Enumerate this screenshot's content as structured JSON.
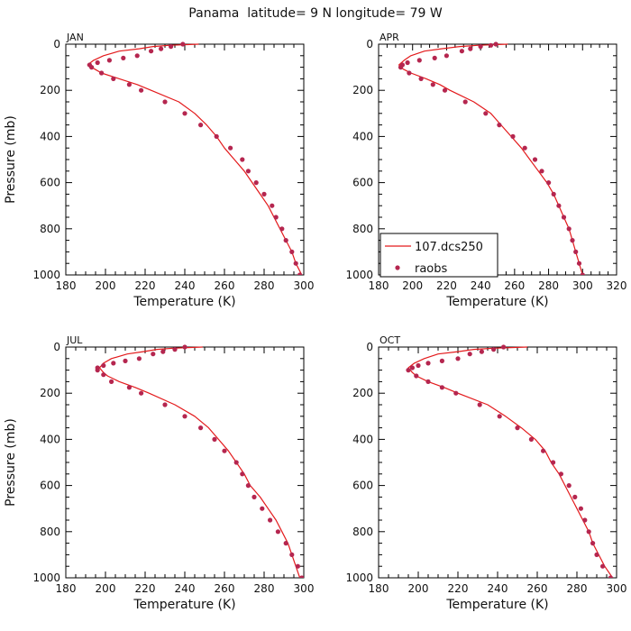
{
  "figure": {
    "title": "Panama  latitude= 9 N longitude= 79 W"
  },
  "colors": {
    "model_line": "#e31a1c",
    "obs_dots": "#b5264f",
    "axes": "#000000"
  },
  "legend": {
    "entries": [
      {
        "label": "107.dcs250",
        "marker": "line"
      },
      {
        "label": "raobs",
        "marker": "dot"
      }
    ]
  },
  "chart_data": [
    {
      "type": "line",
      "panel_label": "JAN",
      "xlabel": "Temperature (K)",
      "ylabel": "Pressure (mb)",
      "xlim": [
        180,
        300
      ],
      "ylim": [
        1000,
        0
      ],
      "xticks": [
        180,
        200,
        220,
        240,
        260,
        280,
        300
      ],
      "yticks": [
        0,
        200,
        400,
        600,
        800,
        1000
      ],
      "series": [
        {
          "name": "107.dcs250",
          "style": "line",
          "points": [
            [
              247,
              0
            ],
            [
              232,
              5
            ],
            [
              224,
              10
            ],
            [
              217,
              20
            ],
            [
              207,
              30
            ],
            [
              199,
              50
            ],
            [
              194,
              70
            ],
            [
              191,
              90
            ],
            [
              193,
              100
            ],
            [
              195,
              110
            ],
            [
              198,
              125
            ],
            [
              207,
              150
            ],
            [
              216,
              175
            ],
            [
              223,
              200
            ],
            [
              237,
              250
            ],
            [
              245,
              300
            ],
            [
              251,
              350
            ],
            [
              256,
              400
            ],
            [
              260,
              450
            ],
            [
              265,
              500
            ],
            [
              270,
              550
            ],
            [
              274,
              600
            ],
            [
              278,
              650
            ],
            [
              282,
              700
            ],
            [
              285,
              750
            ],
            [
              288,
              800
            ],
            [
              291,
              850
            ],
            [
              294,
              900
            ],
            [
              296,
              950
            ],
            [
              299,
              1000
            ]
          ]
        },
        {
          "name": "raobs",
          "style": "dots",
          "points": [
            [
              239,
              0
            ],
            [
              233,
              10
            ],
            [
              228,
              20
            ],
            [
              223,
              30
            ],
            [
              216,
              50
            ],
            [
              209,
              60
            ],
            [
              202,
              70
            ],
            [
              196,
              80
            ],
            [
              192,
              90
            ],
            [
              193,
              100
            ],
            [
              198,
              125
            ],
            [
              204,
              150
            ],
            [
              212,
              175
            ],
            [
              218,
              200
            ],
            [
              230,
              250
            ],
            [
              240,
              300
            ],
            [
              248,
              350
            ],
            [
              256,
              400
            ],
            [
              263,
              450
            ],
            [
              269,
              500
            ],
            [
              272,
              550
            ],
            [
              276,
              600
            ],
            [
              280,
              650
            ],
            [
              284,
              700
            ],
            [
              286,
              750
            ],
            [
              289,
              800
            ],
            [
              291,
              850
            ],
            [
              294,
              900
            ],
            [
              296,
              950
            ],
            [
              298,
              1000
            ]
          ]
        }
      ]
    },
    {
      "type": "line",
      "panel_label": "APR",
      "xlabel": "Temperature (K)",
      "ylabel": "",
      "xlim": [
        180,
        320
      ],
      "ylim": [
        1000,
        0
      ],
      "xticks": [
        180,
        200,
        220,
        240,
        260,
        280,
        300,
        320
      ],
      "yticks": [
        0,
        200,
        400,
        600,
        800,
        1000
      ],
      "series": [
        {
          "name": "107.dcs250",
          "style": "line",
          "points": [
            [
              256,
              0
            ],
            [
              238,
              5
            ],
            [
              228,
              10
            ],
            [
              217,
              20
            ],
            [
              207,
              30
            ],
            [
              199,
              50
            ],
            [
              195,
              70
            ],
            [
              192,
              90
            ],
            [
              193,
              100
            ],
            [
              195,
              110
            ],
            [
              199,
              125
            ],
            [
              208,
              150
            ],
            [
              216,
              175
            ],
            [
              222,
              200
            ],
            [
              236,
              250
            ],
            [
              246,
              300
            ],
            [
              252,
              350
            ],
            [
              258,
              400
            ],
            [
              264,
              450
            ],
            [
              269,
              500
            ],
            [
              274,
              550
            ],
            [
              279,
              600
            ],
            [
              283,
              650
            ],
            [
              286,
              700
            ],
            [
              289,
              750
            ],
            [
              292,
              800
            ],
            [
              294,
              850
            ],
            [
              296,
              900
            ],
            [
              298,
              950
            ],
            [
              300,
              1000
            ]
          ]
        },
        {
          "name": "raobs",
          "style": "dots",
          "points": [
            [
              249,
              0
            ],
            [
              246,
              5
            ],
            [
              240,
              10
            ],
            [
              234,
              20
            ],
            [
              229,
              30
            ],
            [
              220,
              50
            ],
            [
              213,
              60
            ],
            [
              204,
              70
            ],
            [
              197,
              80
            ],
            [
              194,
              90
            ],
            [
              193,
              100
            ],
            [
              198,
              125
            ],
            [
              205,
              150
            ],
            [
              212,
              175
            ],
            [
              219,
              200
            ],
            [
              231,
              250
            ],
            [
              243,
              300
            ],
            [
              251,
              350
            ],
            [
              259,
              400
            ],
            [
              266,
              450
            ],
            [
              272,
              500
            ],
            [
              276,
              550
            ],
            [
              280,
              600
            ],
            [
              283,
              650
            ],
            [
              286,
              700
            ],
            [
              289,
              750
            ],
            [
              292,
              800
            ],
            [
              294,
              850
            ],
            [
              296,
              900
            ],
            [
              298,
              950
            ],
            [
              300,
              1000
            ]
          ]
        }
      ]
    },
    {
      "type": "line",
      "panel_label": "JUL",
      "xlabel": "Temperature (K)",
      "ylabel": "Pressure (mb)",
      "xlim": [
        180,
        300
      ],
      "ylim": [
        1000,
        0
      ],
      "xticks": [
        180,
        200,
        220,
        240,
        260,
        280,
        300
      ],
      "yticks": [
        0,
        200,
        400,
        600,
        800,
        1000
      ],
      "series": [
        {
          "name": "107.dcs250",
          "style": "line",
          "points": [
            [
              249,
              0
            ],
            [
              234,
              5
            ],
            [
              226,
              10
            ],
            [
              219,
              20
            ],
            [
              211,
              30
            ],
            [
              203,
              50
            ],
            [
              199,
              70
            ],
            [
              197,
              90
            ],
            [
              198,
              100
            ],
            [
              199,
              110
            ],
            [
              201,
              125
            ],
            [
              207,
              150
            ],
            [
              215,
              175
            ],
            [
              222,
              200
            ],
            [
              235,
              250
            ],
            [
              245,
              300
            ],
            [
              252,
              350
            ],
            [
              257,
              400
            ],
            [
              262,
              450
            ],
            [
              266,
              500
            ],
            [
              270,
              550
            ],
            [
              273,
              600
            ],
            [
              278,
              650
            ],
            [
              282,
              700
            ],
            [
              286,
              750
            ],
            [
              289,
              800
            ],
            [
              292,
              850
            ],
            [
              294,
              900
            ],
            [
              296,
              950
            ],
            [
              298,
              1000
            ]
          ]
        },
        {
          "name": "raobs",
          "style": "dots",
          "points": [
            [
              240,
              0
            ],
            [
              235,
              10
            ],
            [
              229,
              20
            ],
            [
              224,
              30
            ],
            [
              217,
              50
            ],
            [
              210,
              60
            ],
            [
              204,
              70
            ],
            [
              199,
              80
            ],
            [
              196,
              90
            ],
            [
              196,
              100
            ],
            [
              199,
              120
            ],
            [
              203,
              150
            ],
            [
              212,
              175
            ],
            [
              218,
              200
            ],
            [
              230,
              250
            ],
            [
              240,
              300
            ],
            [
              248,
              350
            ],
            [
              255,
              400
            ],
            [
              260,
              450
            ],
            [
              266,
              500
            ],
            [
              269,
              550
            ],
            [
              272,
              600
            ],
            [
              275,
              650
            ],
            [
              279,
              700
            ],
            [
              283,
              750
            ],
            [
              287,
              800
            ],
            [
              291,
              850
            ],
            [
              294,
              900
            ],
            [
              297,
              950
            ],
            [
              299,
              1000
            ]
          ]
        }
      ]
    },
    {
      "type": "line",
      "panel_label": "OCT",
      "xlabel": "Temperature (K)",
      "ylabel": "",
      "xlim": [
        180,
        300
      ],
      "ylim": [
        1000,
        0
      ],
      "xticks": [
        180,
        200,
        220,
        240,
        260,
        280,
        300
      ],
      "yticks": [
        0,
        200,
        400,
        600,
        800,
        1000
      ],
      "series": [
        {
          "name": "107.dcs250",
          "style": "line",
          "points": [
            [
              255,
              0
            ],
            [
              238,
              5
            ],
            [
              228,
              10
            ],
            [
              220,
              20
            ],
            [
              210,
              30
            ],
            [
              203,
              50
            ],
            [
              198,
              70
            ],
            [
              195,
              90
            ],
            [
              196,
              100
            ],
            [
              197,
              110
            ],
            [
              199,
              125
            ],
            [
              205,
              150
            ],
            [
              213,
              175
            ],
            [
              220,
              200
            ],
            [
              235,
              250
            ],
            [
              244,
              300
            ],
            [
              252,
              350
            ],
            [
              259,
              400
            ],
            [
              264,
              450
            ],
            [
              267,
              500
            ],
            [
              271,
              550
            ],
            [
              274,
              600
            ],
            [
              277,
              650
            ],
            [
              280,
              700
            ],
            [
              283,
              750
            ],
            [
              286,
              800
            ],
            [
              288,
              850
            ],
            [
              291,
              900
            ],
            [
              294,
              950
            ],
            [
              298,
              1000
            ]
          ]
        },
        {
          "name": "raobs",
          "style": "dots",
          "points": [
            [
              243,
              0
            ],
            [
              238,
              10
            ],
            [
              232,
              20
            ],
            [
              226,
              30
            ],
            [
              220,
              50
            ],
            [
              212,
              60
            ],
            [
              205,
              70
            ],
            [
              200,
              80
            ],
            [
              197,
              90
            ],
            [
              195,
              100
            ],
            [
              199,
              125
            ],
            [
              205,
              150
            ],
            [
              212,
              175
            ],
            [
              219,
              200
            ],
            [
              231,
              250
            ],
            [
              241,
              300
            ],
            [
              250,
              350
            ],
            [
              257,
              400
            ],
            [
              263,
              450
            ],
            [
              268,
              500
            ],
            [
              272,
              550
            ],
            [
              276,
              600
            ],
            [
              279,
              650
            ],
            [
              282,
              700
            ],
            [
              284,
              750
            ],
            [
              286,
              800
            ],
            [
              288,
              850
            ],
            [
              290,
              900
            ],
            [
              293,
              950
            ],
            [
              297,
              1000
            ]
          ]
        }
      ]
    }
  ]
}
